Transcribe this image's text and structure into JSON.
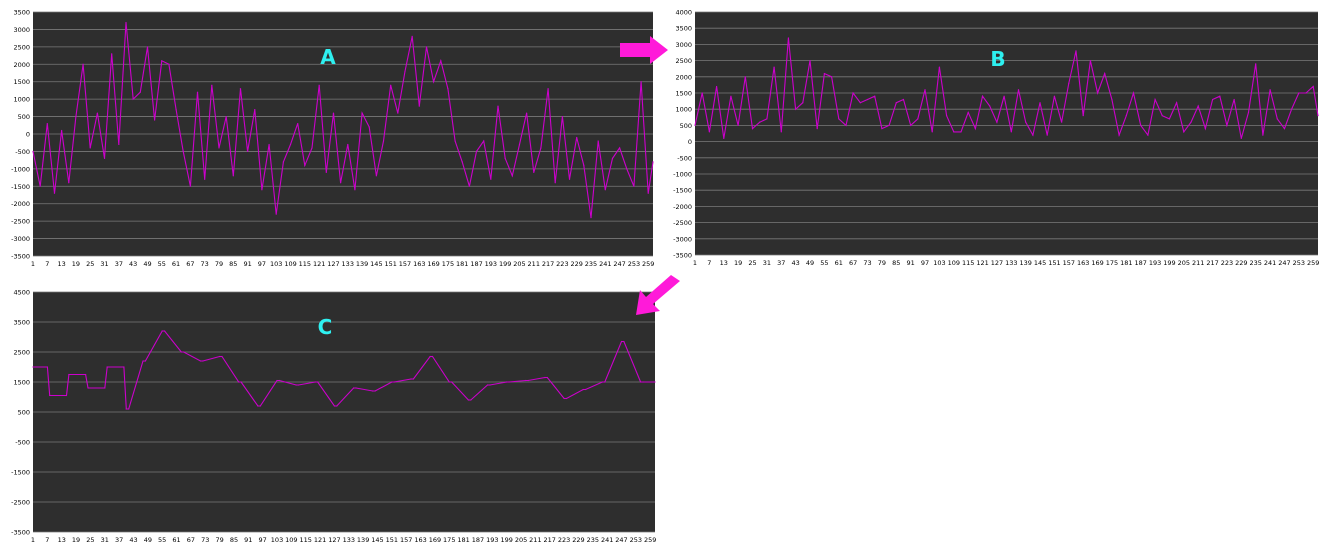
{
  "colors": {
    "plot_background": "#2e2e2e",
    "gridline": "#7a7a7a",
    "series_line": "#cc00cc",
    "panel_label": "#2ef0f0",
    "arrow": "#ff1ad9"
  },
  "arrows": [
    {
      "name": "arrow-a-to-b-icon",
      "direction": "right"
    },
    {
      "name": "arrow-b-to-c-icon",
      "direction": "down-left"
    }
  ],
  "chart_data": [
    {
      "type": "line",
      "panel_label": "A",
      "ylim": [
        -3500,
        3500
      ],
      "yticks": [
        "3500",
        "3000",
        "2500",
        "2000",
        "1500",
        "1000",
        "500",
        "0",
        "-500",
        "-1000",
        "-1500",
        "-2000",
        "-2500",
        "-3000",
        "-3500"
      ],
      "xticks": [
        "1",
        "7",
        "13",
        "19",
        "25",
        "31",
        "37",
        "43",
        "49",
        "55",
        "61",
        "67",
        "73",
        "79",
        "85",
        "91",
        "97",
        "103",
        "109",
        "115",
        "121",
        "127",
        "133",
        "139",
        "145",
        "151",
        "157",
        "163",
        "169",
        "175",
        "181",
        "187",
        "193",
        "199",
        "205",
        "211",
        "217",
        "223",
        "229",
        "235",
        "241",
        "247",
        "253",
        "259"
      ],
      "grid": true,
      "x": [
        1,
        4,
        7,
        10,
        13,
        16,
        19,
        22,
        25,
        28,
        31,
        34,
        37,
        40,
        43,
        46,
        49,
        52,
        55,
        58,
        61,
        64,
        67,
        70,
        73,
        76,
        79,
        82,
        85,
        88,
        91,
        94,
        97,
        100,
        103,
        106,
        109,
        112,
        115,
        118,
        121,
        124,
        127,
        130,
        133,
        136,
        139,
        142,
        145,
        148,
        151,
        154,
        157,
        160,
        163,
        166,
        169,
        172,
        175,
        178,
        181,
        184,
        187,
        190,
        193,
        196,
        199,
        202,
        205,
        208,
        211,
        214,
        217,
        220,
        223,
        226,
        229,
        232,
        235,
        238,
        241,
        244,
        247,
        250,
        253,
        256,
        259,
        261
      ],
      "values": [
        -500,
        -1500,
        300,
        -1700,
        100,
        -1400,
        500,
        2000,
        -400,
        600,
        -700,
        2300,
        -300,
        3200,
        1000,
        1200,
        2500,
        400,
        2100,
        2000,
        700,
        -500,
        -1500,
        1200,
        -1300,
        1400,
        -400,
        500,
        -1200,
        1300,
        -500,
        700,
        -1600,
        -300,
        -2300,
        -800,
        -300,
        300,
        -900,
        -400,
        1400,
        -1100,
        600,
        -1400,
        -300,
        -1600,
        600,
        200,
        -1200,
        -200,
        1400,
        600,
        1800,
        2800,
        800,
        2500,
        1500,
        2100,
        1300,
        -200,
        -800,
        -1500,
        -500,
        -200,
        -1300,
        800,
        -700,
        -1200,
        -300,
        600,
        -1100,
        -400,
        1300,
        -1400,
        500,
        -1300,
        -100,
        -900,
        -2400,
        -200,
        -1600,
        -700,
        -400,
        -1000,
        -1500,
        1500,
        -1700,
        -800
      ],
      "series": [
        {
          "values": "see values"
        }
      ]
    },
    {
      "type": "line",
      "panel_label": "B",
      "ylim": [
        -3500,
        4000
      ],
      "yticks": [
        "4000",
        "3500",
        "3000",
        "2500",
        "2000",
        "1500",
        "1000",
        "500",
        "0",
        "-500",
        "-1000",
        "-1500",
        "-2000",
        "-2500",
        "-3000",
        "-3500"
      ],
      "xticks": [
        "1",
        "7",
        "13",
        "19",
        "25",
        "31",
        "37",
        "43",
        "49",
        "55",
        "61",
        "67",
        "73",
        "79",
        "85",
        "91",
        "97",
        "103",
        "109",
        "115",
        "121",
        "127",
        "133",
        "139",
        "145",
        "151",
        "157",
        "163",
        "169",
        "175",
        "181",
        "187",
        "193",
        "199",
        "205",
        "211",
        "217",
        "223",
        "229",
        "235",
        "241",
        "247",
        "253",
        "259"
      ],
      "grid": true,
      "x": [
        1,
        4,
        7,
        10,
        13,
        16,
        19,
        22,
        25,
        28,
        31,
        34,
        37,
        40,
        43,
        46,
        49,
        52,
        55,
        58,
        61,
        64,
        67,
        70,
        73,
        76,
        79,
        82,
        85,
        88,
        91,
        94,
        97,
        100,
        103,
        106,
        109,
        112,
        115,
        118,
        121,
        124,
        127,
        130,
        133,
        136,
        139,
        142,
        145,
        148,
        151,
        154,
        157,
        160,
        163,
        166,
        169,
        172,
        175,
        178,
        181,
        184,
        187,
        190,
        193,
        196,
        199,
        202,
        205,
        208,
        211,
        214,
        217,
        220,
        223,
        226,
        229,
        232,
        235,
        238,
        241,
        244,
        247,
        250,
        253,
        256,
        259,
        261
      ],
      "values": [
        500,
        1500,
        300,
        1700,
        100,
        1400,
        500,
        2000,
        400,
        600,
        700,
        2300,
        300,
        3200,
        1000,
        1200,
        2500,
        400,
        2100,
        2000,
        700,
        500,
        1500,
        1200,
        1300,
        1400,
        400,
        500,
        1200,
        1300,
        500,
        700,
        1600,
        300,
        2300,
        800,
        300,
        300,
        900,
        400,
        1400,
        1100,
        600,
        1400,
        300,
        1600,
        600,
        200,
        1200,
        200,
        1400,
        600,
        1800,
        2800,
        800,
        2500,
        1500,
        2100,
        1300,
        200,
        800,
        1500,
        500,
        200,
        1300,
        800,
        700,
        1200,
        300,
        600,
        1100,
        400,
        1300,
        1400,
        500,
        1300,
        100,
        900,
        2400,
        200,
        1600,
        700,
        400,
        1000,
        1500,
        1500,
        1700,
        800
      ]
    },
    {
      "type": "line",
      "panel_label": "C",
      "ylim": [
        -3500,
        4500
      ],
      "yticks": [
        "4500",
        "3500",
        "2500",
        "1500",
        "500",
        "-500",
        "-1500",
        "-2500",
        "-3500"
      ],
      "xticks": [
        "1",
        "7",
        "13",
        "19",
        "25",
        "31",
        "37",
        "43",
        "49",
        "55",
        "61",
        "67",
        "73",
        "79",
        "85",
        "91",
        "97",
        "103",
        "109",
        "115",
        "121",
        "127",
        "133",
        "139",
        "145",
        "151",
        "157",
        "163",
        "169",
        "175",
        "181",
        "187",
        "193",
        "199",
        "205",
        "211",
        "217",
        "223",
        "229",
        "235",
        "241",
        "247",
        "253",
        "259"
      ],
      "grid": true,
      "x": [
        1,
        7,
        8,
        15,
        16,
        23,
        24,
        31,
        32,
        39,
        40,
        41,
        47,
        48,
        55,
        56,
        63,
        64,
        71,
        72,
        79,
        80,
        87,
        88,
        95,
        96,
        103,
        104,
        111,
        112,
        119,
        120,
        127,
        128,
        135,
        136,
        143,
        144,
        151,
        152,
        159,
        160,
        167,
        168,
        175,
        176,
        183,
        184,
        191,
        192,
        199,
        200,
        207,
        208,
        215,
        216,
        223,
        224,
        231,
        232,
        239,
        240,
        247,
        248,
        255,
        256,
        261
      ],
      "values": [
        2000,
        2000,
        1050,
        1050,
        1750,
        1750,
        1300,
        1300,
        2000,
        2000,
        600,
        600,
        2200,
        2200,
        3200,
        3200,
        2500,
        2500,
        2200,
        2200,
        2350,
        2350,
        1500,
        1500,
        700,
        700,
        1550,
        1550,
        1400,
        1400,
        1500,
        1500,
        700,
        700,
        1300,
        1300,
        1200,
        1200,
        1500,
        1500,
        1600,
        1600,
        2350,
        2350,
        1500,
        1500,
        900,
        900,
        1400,
        1400,
        1500,
        1500,
        1550,
        1550,
        1650,
        1650,
        950,
        950,
        1250,
        1250,
        1500,
        1500,
        2850,
        2850,
        1500,
        1500,
        1500
      ]
    }
  ]
}
